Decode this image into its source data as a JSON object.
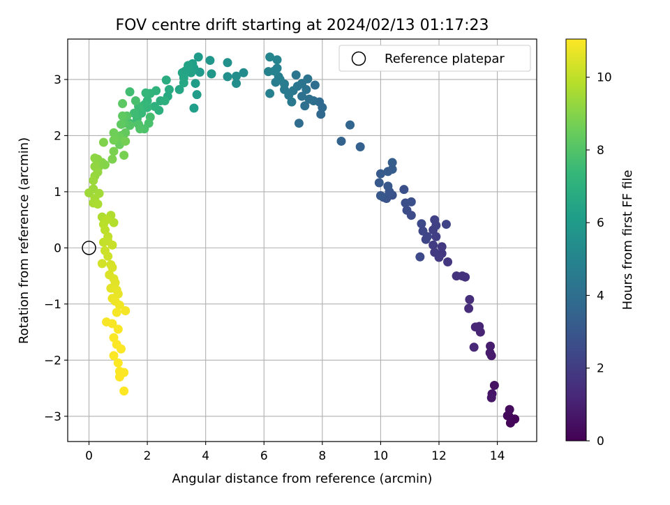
{
  "chart_data": {
    "type": "scatter",
    "title": "FOV centre drift starting at 2024/02/13 01:17:23",
    "xlabel": "Angular distance from reference (arcmin)",
    "ylabel": "Rotation from reference (arcmin)",
    "xlim": [
      -0.73,
      15.35
    ],
    "ylim": [
      -3.45,
      3.72
    ],
    "x_ticks": [
      0,
      2,
      4,
      6,
      8,
      10,
      12,
      14
    ],
    "y_ticks": [
      -3,
      -2,
      -1,
      0,
      1,
      2,
      3
    ],
    "grid": true,
    "legend": {
      "position": "top-right",
      "entries": [
        "Reference platepar"
      ]
    },
    "reference_point": {
      "x": 0,
      "y": 0,
      "marker": "hollow-circle",
      "label": "Reference platepar"
    },
    "colorbar": {
      "label": "Hours from first FF file",
      "colormap": "viridis",
      "range": [
        0,
        11.05
      ],
      "ticks": [
        0,
        2,
        4,
        6,
        8,
        10
      ]
    },
    "colors": {
      "viridis": [
        "#440154",
        "#482878",
        "#3e4989",
        "#31688e",
        "#26828e",
        "#1f9e89",
        "#35b779",
        "#6ece58",
        "#b5de2b",
        "#fde725"
      ],
      "grid": "#b0b0b0",
      "axes": "#000000"
    },
    "points": [
      [
        14.6,
        -3.05,
        0.1
      ],
      [
        14.45,
        -3.12,
        0.15
      ],
      [
        14.4,
        -3.0,
        0.2
      ],
      [
        14.35,
        -2.99,
        0.25
      ],
      [
        14.42,
        -2.88,
        0.3
      ],
      [
        13.9,
        -2.45,
        0.5
      ],
      [
        13.82,
        -2.6,
        0.6
      ],
      [
        13.8,
        -2.67,
        0.65
      ],
      [
        13.8,
        -1.92,
        0.8
      ],
      [
        13.75,
        -1.87,
        0.85
      ],
      [
        13.76,
        -1.75,
        0.9
      ],
      [
        13.42,
        -1.5,
        1.1
      ],
      [
        13.38,
        -1.4,
        1.15
      ],
      [
        13.25,
        -1.41,
        1.2
      ],
      [
        13.2,
        -1.77,
        1.25
      ],
      [
        13.02,
        -1.08,
        1.4
      ],
      [
        13.05,
        -0.92,
        1.45
      ],
      [
        12.9,
        -0.52,
        1.55
      ],
      [
        12.8,
        -0.5,
        1.6
      ],
      [
        12.6,
        -0.5,
        1.65
      ],
      [
        12.3,
        -0.25,
        1.75
      ],
      [
        12.1,
        -0.1,
        1.8
      ],
      [
        12.1,
        0.02,
        1.85
      ],
      [
        12.0,
        -0.17,
        1.9
      ],
      [
        11.85,
        -0.08,
        1.95
      ],
      [
        11.8,
        0.05,
        2.0
      ],
      [
        11.9,
        0.2,
        2.05
      ],
      [
        11.8,
        0.32,
        2.1
      ],
      [
        11.9,
        0.4,
        2.15
      ],
      [
        11.85,
        0.5,
        2.2
      ],
      [
        12.25,
        0.42,
        2.25
      ],
      [
        11.6,
        0.2,
        2.3
      ],
      [
        11.55,
        0.15,
        2.35
      ],
      [
        11.45,
        0.3,
        2.4
      ],
      [
        11.4,
        0.43,
        2.45
      ],
      [
        11.35,
        -0.16,
        2.5
      ],
      [
        11.05,
        0.58,
        2.55
      ],
      [
        10.9,
        0.67,
        2.6
      ],
      [
        10.85,
        0.8,
        2.65
      ],
      [
        11.05,
        0.82,
        2.7
      ],
      [
        10.8,
        1.04,
        2.75
      ],
      [
        10.4,
        0.94,
        2.8
      ],
      [
        10.2,
        0.88,
        2.85
      ],
      [
        10.1,
        0.9,
        2.9
      ],
      [
        10.3,
        1.0,
        2.95
      ],
      [
        10.25,
        1.1,
        3.0
      ],
      [
        10.0,
        0.93,
        3.05
      ],
      [
        9.95,
        1.16,
        3.1
      ],
      [
        10.0,
        1.32,
        3.15
      ],
      [
        10.25,
        1.36,
        3.2
      ],
      [
        10.4,
        1.4,
        3.25
      ],
      [
        10.4,
        1.52,
        3.3
      ],
      [
        9.3,
        1.8,
        3.4
      ],
      [
        8.65,
        1.9,
        3.5
      ],
      [
        8.95,
        2.19,
        3.6
      ],
      [
        7.95,
        2.38,
        3.7
      ],
      [
        8.0,
        2.5,
        3.75
      ],
      [
        7.9,
        2.6,
        3.8
      ],
      [
        7.2,
        2.22,
        3.85
      ],
      [
        7.7,
        2.62,
        3.9
      ],
      [
        7.75,
        2.9,
        3.95
      ],
      [
        7.55,
        2.65,
        4.0
      ],
      [
        7.4,
        2.53,
        4.05
      ],
      [
        7.3,
        2.7,
        4.1
      ],
      [
        7.45,
        2.82,
        4.15
      ],
      [
        7.3,
        2.93,
        4.2
      ],
      [
        7.5,
        3.01,
        4.25
      ],
      [
        7.1,
        3.08,
        4.3
      ],
      [
        7.15,
        2.88,
        4.35
      ],
      [
        7.0,
        2.8,
        4.4
      ],
      [
        6.95,
        2.6,
        4.45
      ],
      [
        6.85,
        2.72,
        4.5
      ],
      [
        6.7,
        2.82,
        4.55
      ],
      [
        6.7,
        2.92,
        4.6
      ],
      [
        6.4,
        2.95,
        4.65
      ],
      [
        6.55,
        3.0,
        4.7
      ],
      [
        6.5,
        3.05,
        4.75
      ],
      [
        6.2,
        2.75,
        4.8
      ],
      [
        6.45,
        3.2,
        4.85
      ],
      [
        6.35,
        3.15,
        4.9
      ],
      [
        6.15,
        3.14,
        4.95
      ],
      [
        6.45,
        3.35,
        5.0
      ],
      [
        6.2,
        3.4,
        5.05
      ],
      [
        5.3,
        3.12,
        5.3
      ],
      [
        5.05,
        3.06,
        5.4
      ],
      [
        5.05,
        2.93,
        5.45
      ],
      [
        4.75,
        3.05,
        5.5
      ],
      [
        4.75,
        3.3,
        5.55
      ],
      [
        4.15,
        3.34,
        5.8
      ],
      [
        4.2,
        3.1,
        5.85
      ],
      [
        3.8,
        3.13,
        5.95
      ],
      [
        3.75,
        3.4,
        6.0
      ],
      [
        3.7,
        2.73,
        6.05
      ],
      [
        3.65,
        2.93,
        6.1
      ],
      [
        3.6,
        2.49,
        6.15
      ],
      [
        3.6,
        3.2,
        6.2
      ],
      [
        3.55,
        3.28,
        6.25
      ],
      [
        3.5,
        3.12,
        6.3
      ],
      [
        3.4,
        3.25,
        6.35
      ],
      [
        3.3,
        3.15,
        6.4
      ],
      [
        3.2,
        3.12,
        6.45
      ],
      [
        3.25,
        3.03,
        6.5
      ],
      [
        3.1,
        2.82,
        6.55
      ],
      [
        3.25,
        2.94,
        6.6
      ],
      [
        2.7,
        2.7,
        6.7
      ],
      [
        2.75,
        2.82,
        6.75
      ],
      [
        2.65,
        2.99,
        6.8
      ],
      [
        2.45,
        2.62,
        6.9
      ],
      [
        2.6,
        2.62,
        6.95
      ],
      [
        2.4,
        2.45,
        7.0
      ],
      [
        2.25,
        2.52,
        7.05
      ],
      [
        2.3,
        2.8,
        7.1
      ],
      [
        2.1,
        2.75,
        7.15
      ],
      [
        2.0,
        2.62,
        7.2
      ],
      [
        2.0,
        2.5,
        7.25
      ],
      [
        1.95,
        2.76,
        7.3
      ],
      [
        1.9,
        2.55,
        7.35
      ],
      [
        1.8,
        2.4,
        7.4
      ],
      [
        1.75,
        2.45,
        7.45
      ],
      [
        1.7,
        2.52,
        7.5
      ],
      [
        1.65,
        2.3,
        7.55
      ],
      [
        1.55,
        2.4,
        7.6
      ],
      [
        1.4,
        2.78,
        7.65
      ],
      [
        1.4,
        2.22,
        7.7
      ],
      [
        2.1,
        2.33,
        7.75
      ],
      [
        1.6,
        2.62,
        7.8
      ],
      [
        2.05,
        2.22,
        7.85
      ],
      [
        1.9,
        2.12,
        7.9
      ],
      [
        1.7,
        2.2,
        7.95
      ],
      [
        1.75,
        2.12,
        8.0
      ],
      [
        1.4,
        2.18,
        8.05
      ],
      [
        1.3,
        2.35,
        8.1
      ],
      [
        1.2,
        2.22,
        8.15
      ],
      [
        1.15,
        2.57,
        8.2
      ],
      [
        1.15,
        2.35,
        8.25
      ],
      [
        1.1,
        2.2,
        8.3
      ],
      [
        1.25,
        2.05,
        8.35
      ],
      [
        1.1,
        2.0,
        8.4
      ],
      [
        1.0,
        1.95,
        8.45
      ],
      [
        1.05,
        1.84,
        8.5
      ],
      [
        1.05,
        1.97,
        8.55
      ],
      [
        0.85,
        2.05,
        8.6
      ],
      [
        0.85,
        1.92,
        8.65
      ],
      [
        1.25,
        1.9,
        8.7
      ],
      [
        1.2,
        1.65,
        8.75
      ],
      [
        0.85,
        1.72,
        8.8
      ],
      [
        0.8,
        1.58,
        8.85
      ],
      [
        0.5,
        1.88,
        8.9
      ],
      [
        0.55,
        1.48,
        8.95
      ],
      [
        0.45,
        1.52,
        9.0
      ],
      [
        0.35,
        1.45,
        9.05
      ],
      [
        0.3,
        1.58,
        9.1
      ],
      [
        0.2,
        1.6,
        9.15
      ],
      [
        0.2,
        1.45,
        9.2
      ],
      [
        0.3,
        1.35,
        9.25
      ],
      [
        0.2,
        1.28,
        9.3
      ],
      [
        0.15,
        1.2,
        9.35
      ],
      [
        0.15,
        1.05,
        9.4
      ],
      [
        0.0,
        0.98,
        9.45
      ],
      [
        0.35,
        0.97,
        9.5
      ],
      [
        0.2,
        0.88,
        9.55
      ],
      [
        0.15,
        0.8,
        9.6
      ],
      [
        0.3,
        0.78,
        9.65
      ],
      [
        0.45,
        0.55,
        9.7
      ],
      [
        0.75,
        0.58,
        9.75
      ],
      [
        0.85,
        0.45,
        9.8
      ],
      [
        0.6,
        0.5,
        9.85
      ],
      [
        0.5,
        0.42,
        9.9
      ],
      [
        0.55,
        0.32,
        9.95
      ],
      [
        0.65,
        0.2,
        10.0
      ],
      [
        0.5,
        0.1,
        10.05
      ],
      [
        0.65,
        0.12,
        10.1
      ],
      [
        0.8,
        0.05,
        10.15
      ],
      [
        0.55,
        -0.05,
        10.2
      ],
      [
        0.65,
        -0.15,
        10.25
      ],
      [
        0.45,
        -0.28,
        10.3
      ],
      [
        0.75,
        -0.3,
        10.35
      ],
      [
        0.8,
        -0.35,
        10.4
      ],
      [
        0.7,
        -0.48,
        10.45
      ],
      [
        0.85,
        -0.55,
        10.5
      ],
      [
        0.9,
        -0.62,
        10.55
      ],
      [
        0.75,
        -0.72,
        10.6
      ],
      [
        0.95,
        -0.75,
        10.65
      ],
      [
        1.0,
        -0.82,
        10.7
      ],
      [
        0.8,
        -0.9,
        10.75
      ],
      [
        0.9,
        -0.95,
        10.8
      ],
      [
        1.05,
        -1.02,
        10.85
      ],
      [
        1.25,
        -1.12,
        10.9
      ],
      [
        0.95,
        -1.15,
        10.92
      ],
      [
        0.6,
        -1.32,
        10.94
      ],
      [
        0.8,
        -1.35,
        10.96
      ],
      [
        1.0,
        -1.45,
        10.98
      ],
      [
        0.85,
        -1.6,
        11.0
      ],
      [
        0.95,
        -1.72,
        11.01
      ],
      [
        1.1,
        -1.8,
        11.02
      ],
      [
        0.85,
        -1.92,
        11.03
      ],
      [
        1.0,
        -2.05,
        11.03
      ],
      [
        1.05,
        -2.2,
        11.04
      ],
      [
        1.2,
        -2.22,
        11.04
      ],
      [
        1.05,
        -2.3,
        11.05
      ],
      [
        1.2,
        -2.55,
        11.05
      ]
    ]
  }
}
